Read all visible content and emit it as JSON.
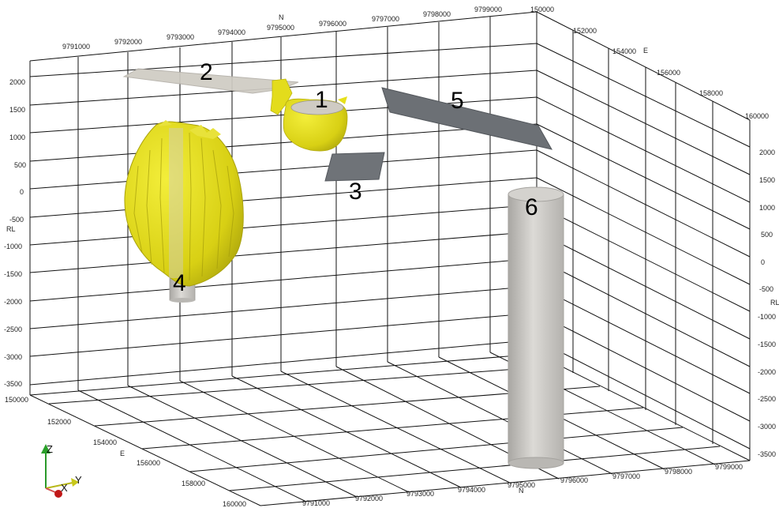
{
  "axes": {
    "n_label": "N",
    "e_label": "E",
    "rl_label": "RL",
    "n_ticks_top": [
      "9791000",
      "9792000",
      "9793000",
      "9794000",
      "9795000",
      "9796000",
      "9797000",
      "9798000",
      "9799000"
    ],
    "n_ticks_bottom": [
      "9791000",
      "9792000",
      "9793000",
      "9794000",
      "9795000",
      "9796000",
      "9797000",
      "9798000",
      "9799000"
    ],
    "e_ticks_right_top": [
      "150000",
      "152000",
      "154000",
      "156000",
      "158000",
      "160000"
    ],
    "e_ticks_left_bottom": [
      "150000",
      "152000",
      "154000",
      "156000",
      "158000",
      "160000"
    ],
    "rl_ticks_left": [
      "2000",
      "1500",
      "1000",
      "500",
      "0",
      "-500",
      "-1000",
      "-1500",
      "-2000",
      "-2500",
      "-3000",
      "-3500"
    ],
    "rl_ticks_right": [
      "2000",
      "1500",
      "1000",
      "500",
      "0",
      "-500",
      "-1000",
      "-1500",
      "-2000",
      "-2500",
      "-3000",
      "-3500"
    ]
  },
  "objects": [
    {
      "id": "1",
      "label": "1"
    },
    {
      "id": "2",
      "label": "2"
    },
    {
      "id": "3",
      "label": "3"
    },
    {
      "id": "4",
      "label": "4"
    },
    {
      "id": "5",
      "label": "5"
    },
    {
      "id": "6",
      "label": "6"
    }
  ],
  "triad": {
    "z": "Z",
    "x": "X",
    "y": "Y"
  },
  "colors": {
    "grid": "#111111",
    "orebody": "#e6e01a",
    "plane_light": "#c9c5bd",
    "plane_dark": "#6f7378",
    "cylinder": "#c8c6c2"
  }
}
